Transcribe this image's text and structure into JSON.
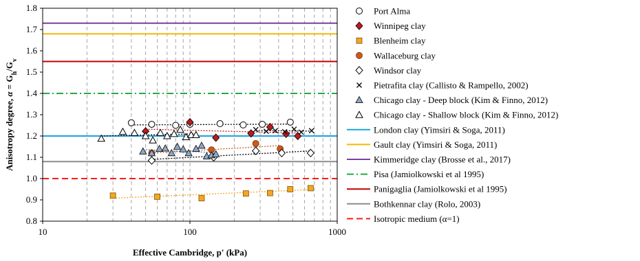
{
  "chart_data": {
    "type": "scatter",
    "title": "",
    "xlabel": "Effective Cambridge, p' (kPa)",
    "ylabel_parts": [
      "Anisotropy degree, ",
      "α",
      " = G",
      "h",
      "/G",
      "v"
    ],
    "x_scale": "log",
    "xlim": [
      10,
      1000
    ],
    "ylim": [
      0.8,
      1.8
    ],
    "x_ticks": [
      10,
      100,
      1000
    ],
    "x_tick_labels": [
      "10",
      "100",
      "1000"
    ],
    "y_ticks": [
      0.8,
      0.9,
      1.0,
      1.1,
      1.2,
      1.3,
      1.4,
      1.5,
      1.6,
      1.7,
      1.8
    ],
    "y_tick_labels": [
      "0.8",
      "0.9",
      "1.0",
      "1.1",
      "1.2",
      "1.3",
      "1.4",
      "1.5",
      "1.6",
      "1.7",
      "1.8"
    ],
    "grid": "vertical-dashed",
    "legend_position": "right",
    "series": [
      {
        "name": "Port Alma",
        "marker": "circle-open",
        "color": "#000000",
        "x": [
          40,
          55,
          80,
          100,
          160,
          230,
          310,
          480
        ],
        "y": [
          1.262,
          1.255,
          1.25,
          1.255,
          1.258,
          1.252,
          1.255,
          1.265
        ]
      },
      {
        "name": "Winnipeg clay",
        "marker": "diamond",
        "color": "#c0181f",
        "x": [
          50,
          100,
          150,
          260,
          350,
          450,
          540
        ],
        "y": [
          1.222,
          1.265,
          1.192,
          1.212,
          1.242,
          1.21,
          1.2
        ]
      },
      {
        "name": "Blenheim clay",
        "marker": "square",
        "color": "#f5a623",
        "x": [
          30,
          60,
          120,
          240,
          350,
          480,
          660
        ],
        "y": [
          0.92,
          0.915,
          0.908,
          0.93,
          0.932,
          0.95,
          0.955
        ]
      },
      {
        "name": "Wallaceburg clay",
        "marker": "circle",
        "color": "#cc5a1a",
        "x": [
          55,
          140,
          280,
          410
        ],
        "y": [
          1.12,
          1.135,
          1.165,
          1.14
        ]
      },
      {
        "name": "Windsor clay",
        "marker": "diamond-open",
        "color": "#000000",
        "x": [
          55,
          145,
          280,
          420,
          660
        ],
        "y": [
          1.085,
          1.1,
          1.13,
          1.12,
          1.12
        ]
      },
      {
        "name": "Pietrafita clay (Callisto & Rampello, 2002)",
        "marker": "x",
        "color": "#000000",
        "x": [
          280,
          330,
          380,
          440,
          510,
          570,
          670
        ],
        "y": [
          1.23,
          1.222,
          1.225,
          1.22,
          1.232,
          1.218,
          1.225
        ]
      },
      {
        "name": "Chicago clay - Deep block (Kim & Finno, 2012)",
        "marker": "triangle",
        "color": "#8fa8c8",
        "x": [
          48,
          55,
          62,
          68,
          75,
          82,
          90,
          98,
          110,
          120,
          130,
          140,
          150
        ],
        "y": [
          1.128,
          1.12,
          1.14,
          1.142,
          1.12,
          1.15,
          1.138,
          1.12,
          1.14,
          1.155,
          1.105,
          1.11,
          1.115
        ]
      },
      {
        "name": "Chicago clay - Shallow block (Kim & Finno, 2012)",
        "marker": "triangle-open",
        "color": "#000000",
        "x": [
          25,
          35,
          42,
          50,
          56,
          63,
          70,
          78,
          86,
          94,
          102,
          110
        ],
        "y": [
          1.188,
          1.22,
          1.215,
          1.2,
          1.18,
          1.215,
          1.2,
          1.21,
          1.23,
          1.195,
          1.205,
          1.205
        ]
      }
    ],
    "trendlines": [
      {
        "series": "Port Alma",
        "color": "#000000",
        "x": [
          40,
          480
        ],
        "y": [
          1.252,
          1.256
        ]
      },
      {
        "series": "Winnipeg clay",
        "color": "#c0181f",
        "x": [
          50,
          540
        ],
        "y": [
          1.232,
          1.214
        ]
      },
      {
        "series": "Blenheim clay",
        "color": "#f5a623",
        "x": [
          30,
          660
        ],
        "y": [
          0.908,
          0.948
        ]
      },
      {
        "series": "Wallaceburg clay",
        "color": "#cc5a1a",
        "x": [
          55,
          410
        ],
        "y": [
          1.12,
          1.155
        ]
      },
      {
        "series": "Windsor clay",
        "color": "#000000",
        "x": [
          55,
          660
        ],
        "y": [
          1.09,
          1.13
        ]
      },
      {
        "series": "Pietrafita clay (Callisto & Rampello, 2002)",
        "color": "#000000",
        "x": [
          280,
          670
        ],
        "y": [
          1.226,
          1.223
        ]
      },
      {
        "series": "Chicago clay - Deep block (Kim & Finno, 2012)",
        "color": "#5577aa",
        "x": [
          48,
          150
        ],
        "y": [
          1.136,
          1.122
        ]
      },
      {
        "series": "Chicago clay - Shallow block (Kim & Finno, 2012)",
        "color": "#000000",
        "x": [
          25,
          110
        ],
        "y": [
          1.2,
          1.21
        ]
      }
    ],
    "reference_lines": [
      {
        "name": "London clay (Yimsiri & Soga, 2011)",
        "y": 1.2,
        "color": "#1aa3e0",
        "style": "solid"
      },
      {
        "name": "Gault clay (Yimsiri & Soga, 2011)",
        "y": 1.68,
        "color": "#f5b800",
        "style": "solid"
      },
      {
        "name": "Kimmeridge clay (Brosse et al., 2017)",
        "y": 1.73,
        "color": "#7b3f9e",
        "style": "solid"
      },
      {
        "name": "Pisa  (Jamiolkowski et al 1995)",
        "y": 1.4,
        "color": "#22aa44",
        "style": "dashdot"
      },
      {
        "name": "Panigaglia  (Jamiolkowski et al 1995)",
        "y": 1.55,
        "color": "#c00000",
        "style": "solid"
      },
      {
        "name": "Bothkennar clay (Rolo, 2003)",
        "y": 1.08,
        "color": "#8c8c8c",
        "style": "solid"
      },
      {
        "name": "Isotropic medium (α=1)",
        "y": 1.0,
        "color": "#ff1a1a",
        "style": "dashed"
      }
    ]
  }
}
